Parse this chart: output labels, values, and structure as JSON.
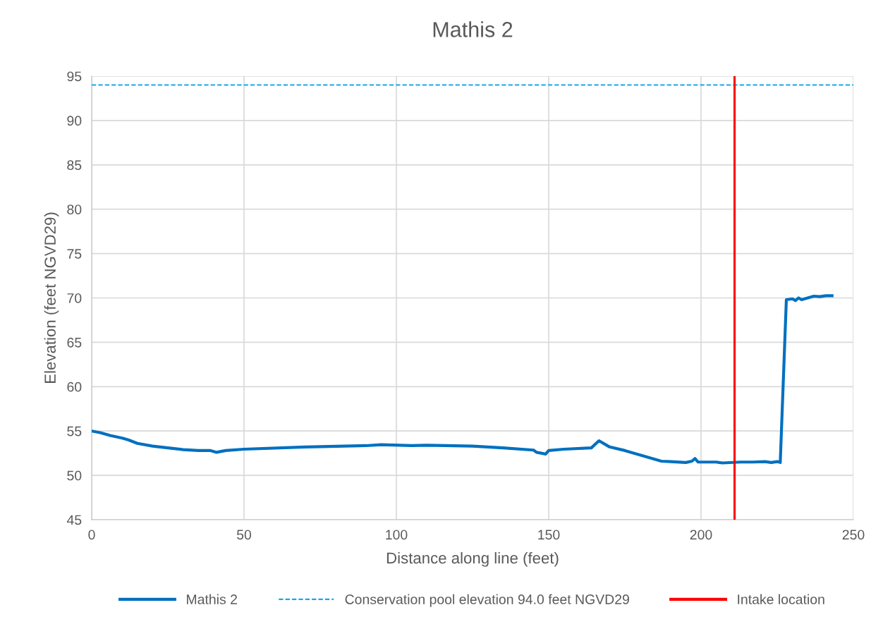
{
  "chart_data": {
    "type": "line",
    "title": "Mathis 2",
    "xlabel": "Distance along line (feet)",
    "ylabel": "Elevation (feet NGVD29)",
    "xlim": [
      0,
      250
    ],
    "xticks": [
      0,
      50,
      100,
      150,
      200,
      250
    ],
    "ylim": [
      45,
      95
    ],
    "yticks": [
      45,
      50,
      55,
      60,
      65,
      70,
      75,
      80,
      85,
      90,
      95
    ],
    "grid": true,
    "legend": "bottom",
    "marker": "none",
    "series": [
      {
        "name": "Mathis 2",
        "color": "#0070c0",
        "line_style": "solid",
        "x": [
          0,
          3,
          6,
          10,
          12,
          15,
          20,
          25,
          30,
          35,
          39,
          41,
          44,
          50,
          70,
          90,
          95,
          105,
          110,
          125,
          135,
          145,
          146,
          149,
          150,
          155,
          164,
          166.5,
          170,
          175,
          180,
          187,
          190,
          195,
          197,
          198,
          199,
          205,
          207,
          213,
          217,
          221,
          223,
          225,
          226,
          228,
          230,
          231,
          232,
          233,
          235,
          237,
          239,
          241,
          243
        ],
        "values": [
          55.0,
          54.8,
          54.5,
          54.2,
          54.0,
          53.6,
          53.3,
          53.1,
          52.9,
          52.8,
          52.8,
          52.6,
          52.8,
          52.95,
          53.2,
          53.35,
          53.45,
          53.35,
          53.4,
          53.3,
          53.1,
          52.85,
          52.6,
          52.4,
          52.8,
          52.95,
          53.1,
          53.9,
          53.2,
          52.8,
          52.3,
          51.6,
          51.55,
          51.45,
          51.6,
          51.9,
          51.5,
          51.5,
          51.4,
          51.5,
          51.5,
          51.55,
          51.45,
          51.55,
          51.45,
          69.8,
          69.9,
          69.7,
          70.0,
          69.8,
          70.0,
          70.2,
          70.15,
          70.25,
          70.25
        ]
      }
    ],
    "ref_lines": [
      {
        "axis": "y",
        "value": 94.0,
        "label": "Conservation pool elevation 94.0 feet NGVD29",
        "color": "#1aa7e8",
        "line_style": "dashed"
      },
      {
        "axis": "x",
        "value": 211,
        "label": "Intake location",
        "color": "#ff0000",
        "line_style": "solid"
      }
    ]
  }
}
